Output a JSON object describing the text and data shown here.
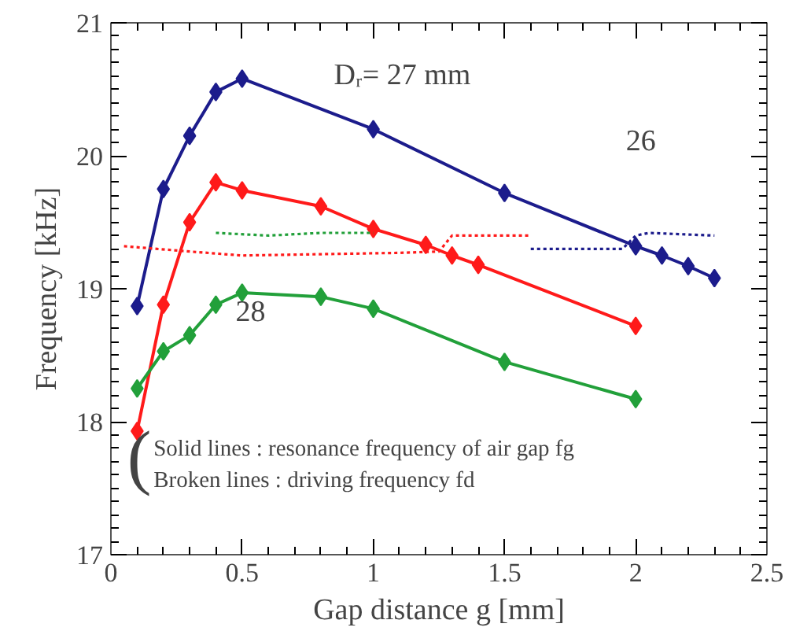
{
  "chart_data": {
    "type": "line",
    "xlabel": "Gap distance g [mm]",
    "ylabel": "Frequency [kHz]",
    "xlim": [
      0,
      2.5
    ],
    "ylim": [
      17,
      21
    ],
    "xticks": [
      0,
      0.5,
      1,
      1.5,
      2,
      2.5
    ],
    "yticks": [
      17,
      18,
      19,
      20,
      21
    ],
    "grid": false,
    "series": [
      {
        "color": "#1c1c8c",
        "marker": "diamond",
        "line_style": "solid",
        "x": [
          0.1,
          0.2,
          0.3,
          0.4,
          0.5,
          1.0,
          1.5,
          2.0,
          2.1,
          2.2,
          2.3
        ],
        "values": [
          18.87,
          19.75,
          20.15,
          20.48,
          20.58,
          20.2,
          19.72,
          19.32,
          19.25,
          19.17,
          19.08
        ]
      },
      {
        "color": "#ff1a1a",
        "marker": "diamond",
        "line_style": "solid",
        "x": [
          0.1,
          0.2,
          0.3,
          0.4,
          0.5,
          0.8,
          1.0,
          1.2,
          1.3,
          1.4,
          2.0
        ],
        "values": [
          17.93,
          18.88,
          19.5,
          19.8,
          19.74,
          19.62,
          19.45,
          19.33,
          19.25,
          19.18,
          18.72
        ]
      },
      {
        "color": "#22a03a",
        "marker": "diamond",
        "line_style": "solid",
        "x": [
          0.1,
          0.2,
          0.3,
          0.4,
          0.5,
          0.8,
          1.0,
          1.5,
          2.0
        ],
        "values": [
          18.25,
          18.53,
          18.65,
          18.88,
          18.97,
          18.94,
          18.85,
          18.45,
          18.17
        ]
      },
      {
        "color": "#1c1c8c",
        "marker": "none",
        "line_style": "dotted",
        "x": [
          1.6,
          1.8,
          1.95,
          2.0,
          2.05,
          2.3
        ],
        "values": [
          19.3,
          19.3,
          19.3,
          19.4,
          19.42,
          19.4
        ]
      },
      {
        "color": "#ff1a1a",
        "marker": "none",
        "line_style": "dotted",
        "x": [
          0.05,
          0.3,
          0.5,
          0.8,
          1.1,
          1.25,
          1.3,
          1.6
        ],
        "values": [
          19.32,
          19.28,
          19.25,
          19.26,
          19.27,
          19.28,
          19.4,
          19.4
        ]
      },
      {
        "color": "#22a03a",
        "marker": "none",
        "line_style": "dotted",
        "x": [
          0.4,
          0.6,
          0.8,
          1.0
        ],
        "values": [
          19.42,
          19.4,
          19.42,
          19.42
        ]
      }
    ],
    "annotations": [
      "Dᵣ= 27 mm",
      "26",
      "28",
      "(",
      "Solid lines : resonance frequency of air gap fg",
      "Broken lines : driving frequency fd"
    ]
  }
}
